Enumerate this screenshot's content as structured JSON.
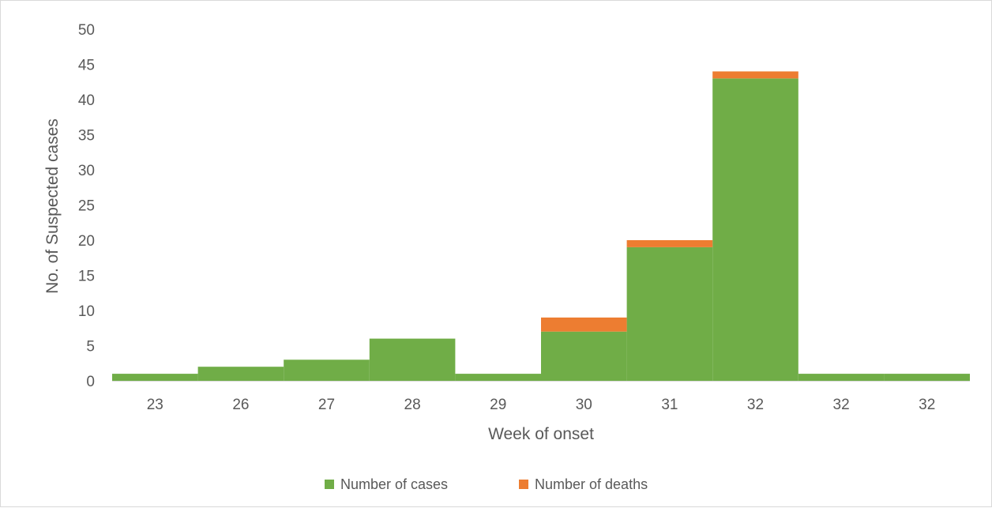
{
  "chart_data": {
    "type": "bar",
    "stacked": true,
    "title": "",
    "xlabel": "Week of onset",
    "ylabel": "No. of Suspected cases",
    "categories": [
      "23",
      "26",
      "27",
      "28",
      "29",
      "30",
      "31",
      "32",
      "32",
      "32"
    ],
    "series": [
      {
        "name": "Number of cases",
        "color": "#70AD47",
        "values": [
          1,
          2,
          3,
          6,
          1,
          7,
          19,
          43,
          1,
          1
        ]
      },
      {
        "name": "Number of deaths",
        "color": "#ED7D31",
        "values": [
          0,
          0,
          0,
          0,
          0,
          2,
          1,
          1,
          0,
          0
        ]
      }
    ],
    "ylim": [
      0,
      50
    ],
    "yticks": [
      0,
      5,
      10,
      15,
      20,
      25,
      30,
      35,
      40,
      45,
      50
    ],
    "grid": false,
    "bar_gap": 0,
    "legend_position": "bottom"
  }
}
